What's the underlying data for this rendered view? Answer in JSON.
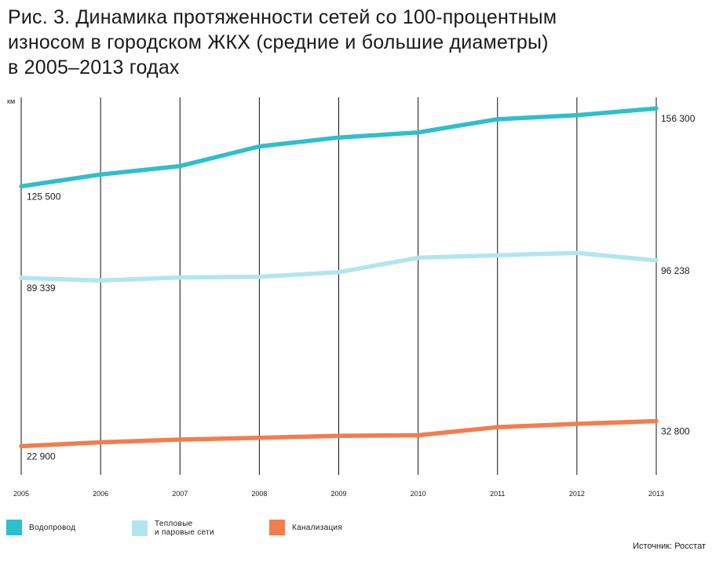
{
  "figure": {
    "title_lines": [
      "Рис. 3. Динамика протяженности сетей со 100-процентным",
      "износом в городском ЖКХ (средние и большие диаметры)",
      "в 2005–2013 годах"
    ],
    "source": "Источник: Росстат"
  },
  "chart_data": {
    "type": "line",
    "title": "Рис. 3. Динамика протяженности сетей со 100-процентным износом в городском ЖКХ (средние и большие диаметры) в 2005–2013 годах",
    "ylabel": "км",
    "xlabel": "",
    "x": [
      "2005",
      "2006",
      "2007",
      "2008",
      "2009",
      "2010",
      "2011",
      "2012",
      "2013"
    ],
    "ylim": [
      10000,
      165000
    ],
    "y_ticks_shown": false,
    "grid": "vertical lines at each year",
    "legend_position": "bottom",
    "series": [
      {
        "name": "Водопровод",
        "color": "#2ebfcc",
        "values": [
          125500,
          130200,
          133500,
          141300,
          144800,
          146800,
          152000,
          153600,
          156300
        ],
        "labels": {
          "first": "125 500",
          "last": "156 300"
        }
      },
      {
        "name": "Тепловые\nи паровые сети",
        "color": "#b2e6ef",
        "values": [
          89339,
          88300,
          89500,
          89800,
          91600,
          97300,
          98300,
          99200,
          96238
        ],
        "labels": {
          "first": "89 339",
          "last": "96 238"
        }
      },
      {
        "name": "Канализация",
        "color": "#f47c4e",
        "values": [
          22900,
          24400,
          25500,
          26200,
          27000,
          27200,
          30400,
          31700,
          32800
        ],
        "labels": {
          "first": "22 900",
          "last": "32 800"
        }
      }
    ]
  }
}
